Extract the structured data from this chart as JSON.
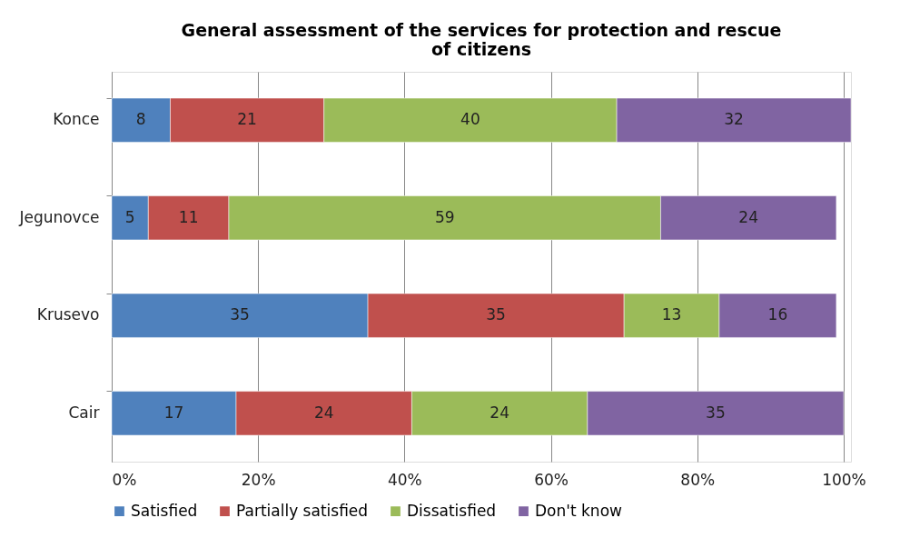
{
  "chart_data": {
    "type": "bar",
    "orientation": "horizontal",
    "stacked": true,
    "title": "General assessment of the services for protection and rescue of citizens",
    "categories": [
      "Konce",
      "Jegunovce",
      "Krusevo",
      "Cair"
    ],
    "series": [
      {
        "name": "Satisfied",
        "color": "#4f81bd",
        "values": [
          8,
          5,
          35,
          17
        ]
      },
      {
        "name": "Partially satisfied",
        "color": "#c0504d",
        "values": [
          21,
          11,
          35,
          24
        ]
      },
      {
        "name": "Dissatisfied",
        "color": "#9bbb59",
        "values": [
          40,
          59,
          13,
          24
        ]
      },
      {
        "name": "Don't know",
        "color": "#8064a2",
        "values": [
          32,
          24,
          16,
          35
        ]
      }
    ],
    "xlim": [
      0,
      101
    ],
    "xticks": [
      {
        "value": 0,
        "label": "0%"
      },
      {
        "value": 20,
        "label": "20%"
      },
      {
        "value": 40,
        "label": "40%"
      },
      {
        "value": 60,
        "label": "60%"
      },
      {
        "value": 80,
        "label": "80%"
      },
      {
        "value": 100,
        "label": "100%"
      }
    ],
    "grid": "x",
    "legend": "bottom",
    "data_labels": true
  }
}
